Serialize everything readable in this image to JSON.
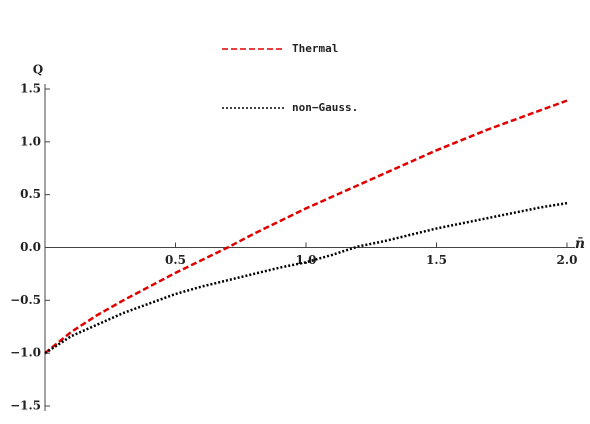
{
  "chart_data": {
    "type": "line",
    "ylabel": "Q",
    "xlabel": "n̄",
    "x": [
      0,
      0.1,
      0.2,
      0.3,
      0.4,
      0.5,
      0.6,
      0.7,
      0.8,
      0.9,
      1.0,
      1.1,
      1.2,
      1.3,
      1.4,
      1.5,
      1.6,
      1.7,
      1.8,
      1.9,
      2.0
    ],
    "series": [
      {
        "name": "Thermal",
        "color": "#e00000",
        "dash": "dashed",
        "values": [
          -1,
          -0.8,
          -0.64,
          -0.5,
          -0.37,
          -0.24,
          -0.12,
          0.0,
          0.13,
          0.25,
          0.37,
          0.48,
          0.59,
          0.7,
          0.81,
          0.92,
          1.02,
          1.12,
          1.21,
          1.3,
          1.39
        ]
      },
      {
        "name": "non−Gauss.",
        "color": "#000000",
        "dash": "dotted",
        "values": [
          -1,
          -0.84,
          -0.73,
          -0.62,
          -0.53,
          -0.44,
          -0.37,
          -0.31,
          -0.25,
          -0.19,
          -0.14,
          -0.07,
          0.01,
          0.06,
          0.12,
          0.18,
          0.23,
          0.28,
          0.33,
          0.38,
          0.42
        ]
      }
    ],
    "xlim": [
      0,
      2.0
    ],
    "ylim": [
      -1.5,
      1.5
    ],
    "xticks": [
      0.5,
      {
        "value": 1,
        "label": "1.0"
      },
      1.5,
      {
        "value": 2,
        "label": "2.0"
      }
    ],
    "yticks": [
      {
        "value": -1.5,
        "label": "−1.5"
      },
      {
        "value": -1,
        "label": "−1.0"
      },
      {
        "value": -0.5,
        "label": "−0.5"
      },
      {
        "value": 0,
        "label": "0.0"
      },
      0.5,
      {
        "value": 1,
        "label": "1.0"
      },
      1.5
    ]
  }
}
